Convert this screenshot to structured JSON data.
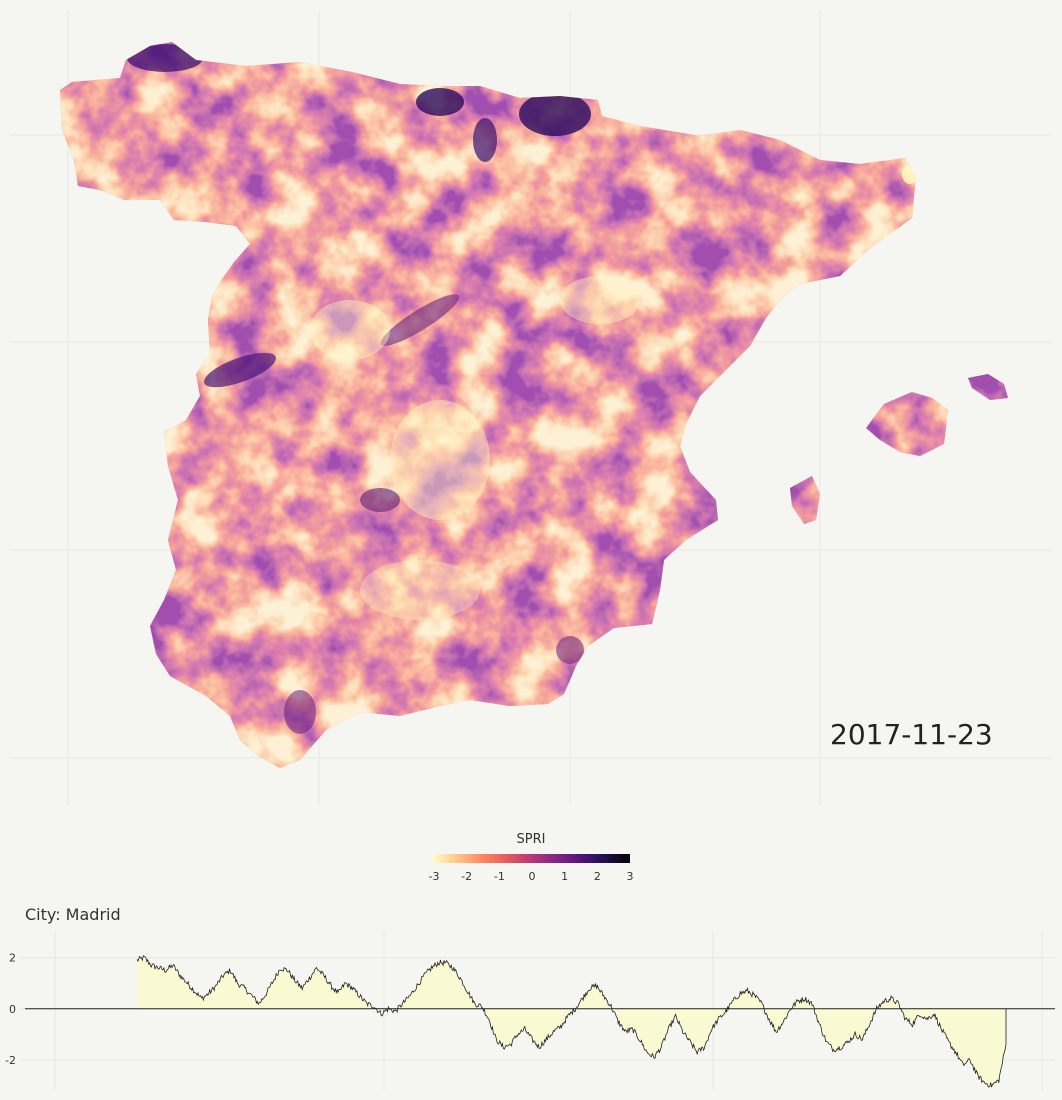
{
  "chart_data": [
    {
      "type": "heatmap",
      "title": "",
      "date": "2017-11-23",
      "colorbar": {
        "title": "SPRI",
        "range": [
          -3,
          3
        ],
        "ticks": [
          "-3",
          "-2",
          "-1",
          "0",
          "1",
          "2",
          "3"
        ],
        "colors": [
          "#fffbc4",
          "#fec287",
          "#fb8761",
          "#e35a5e",
          "#b73779",
          "#822681",
          "#51127c",
          "#1d1147",
          "#000004"
        ]
      },
      "grid": true
    },
    {
      "type": "area",
      "title": "City: Madrid",
      "yticks": [
        "2",
        "0",
        "-2"
      ],
      "ylim": [
        -3.1,
        2.3
      ],
      "baseline": 0,
      "fill": "#fafad2",
      "line": "#222222",
      "grid": true,
      "series": [
        {
          "values": [
            1.9,
            2.0,
            1.7,
            1.6,
            1.5,
            1.7,
            1.3,
            1.0,
            0.7,
            0.4,
            0.6,
            0.9,
            1.3,
            1.5,
            1.0,
            0.8,
            0.5,
            0.2,
            0.6,
            1.1,
            1.6,
            1.5,
            1.1,
            0.8,
            1.2,
            1.6,
            1.3,
            0.9,
            0.6,
            1.0,
            0.8,
            0.5,
            0.2,
            0.1,
            -0.2,
            0.0,
            -0.1,
            0.2,
            0.5,
            0.9,
            1.3,
            1.6,
            1.8,
            1.8,
            1.6,
            1.2,
            0.7,
            0.2,
            0.1,
            -0.4,
            -1.2,
            -1.5,
            -1.4,
            -1.0,
            -0.8,
            -1.2,
            -1.5,
            -1.2,
            -0.9,
            -0.7,
            -0.3,
            0.0,
            0.4,
            0.8,
            0.9,
            0.5,
            0.1,
            -0.5,
            -0.9,
            -0.8,
            -1.2,
            -1.7,
            -1.9,
            -1.5,
            -0.8,
            -0.3,
            -0.9,
            -1.3,
            -1.7,
            -1.5,
            -0.8,
            -0.4,
            -0.1,
            0.3,
            0.6,
            0.7,
            0.5,
            0.2,
            -0.4,
            -0.9,
            -0.5,
            0.0,
            0.3,
            0.4,
            0.2,
            -0.6,
            -1.3,
            -1.6,
            -1.5,
            -1.3,
            -1.0,
            -1.2,
            -0.6,
            0.0,
            0.3,
            0.4,
            0.2,
            -0.4,
            -0.6,
            -0.2,
            -0.4,
            -0.2,
            -0.8,
            -1.3,
            -1.7,
            -2.2,
            -2.0,
            -2.6,
            -2.9,
            -3.0,
            -2.8,
            -1.4
          ]
        }
      ]
    }
  ]
}
